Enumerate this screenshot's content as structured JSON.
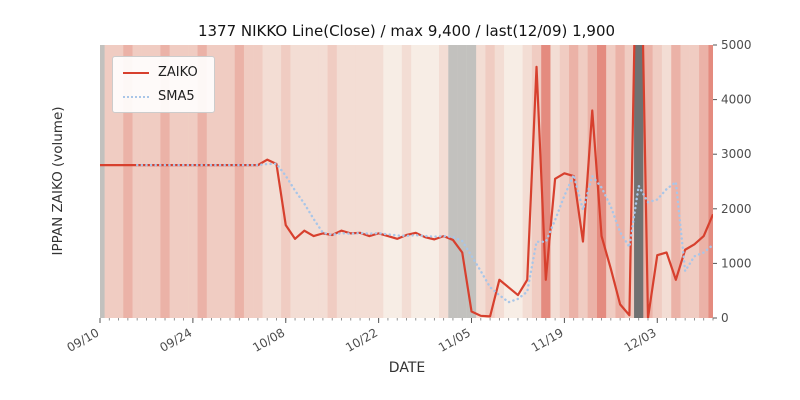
{
  "chart": {
    "title": "1377 NIKKO Line(Close) / max 9,400 / last(12/09) 1,900",
    "xlabel": "DATE",
    "ylabel": "IPPAN ZAIKO (volume)",
    "legend": [
      {
        "label": "ZAIKO"
      },
      {
        "label": "SMA5"
      }
    ]
  },
  "chart_data": {
    "type": "line",
    "title": "1377 NIKKO Line(Close) / max 9,400 / last(12/09) 1,900",
    "xlabel": "DATE",
    "ylabel": "IPPAN ZAIKO (volume)",
    "ylim": [
      0,
      5000
    ],
    "y_ticks": [
      0,
      1000,
      2000,
      3000,
      4000,
      5000
    ],
    "x_tick_labels": [
      "09/10",
      "09/24",
      "10/08",
      "10/22",
      "11/05",
      "11/19",
      "12/03"
    ],
    "x_tick_indices": [
      0,
      10,
      20,
      30,
      40,
      50,
      60
    ],
    "legend_position": "upper-left",
    "grid": false,
    "max_annotated": 9400,
    "last_annotated": {
      "date": "12/09",
      "value": 1900
    },
    "series": [
      {
        "name": "ZAIKO",
        "color": "#d7402e",
        "style": "solid",
        "values": [
          2800,
          2800,
          2800,
          2800,
          2800,
          2800,
          2800,
          2800,
          2800,
          2800,
          2800,
          2800,
          2800,
          2800,
          2800,
          2800,
          2800,
          2800,
          2900,
          2820,
          1700,
          1450,
          1600,
          1500,
          1550,
          1520,
          1600,
          1550,
          1560,
          1500,
          1550,
          1500,
          1450,
          1520,
          1560,
          1480,
          1440,
          1500,
          1430,
          1200,
          120,
          40,
          30,
          700,
          560,
          420,
          700,
          4600,
          700,
          2550,
          2650,
          2600,
          1400,
          3800,
          1500,
          900,
          250,
          50,
          9400,
          0,
          1150,
          1200,
          700,
          1250,
          1350,
          1500,
          1900
        ]
      },
      {
        "name": "SMA5",
        "color": "#a9c6e8",
        "style": "dotted",
        "derived": "5-period moving average of ZAIKO"
      }
    ],
    "bands": [
      "g",
      2,
      2,
      3,
      2,
      2,
      2,
      3,
      2,
      2,
      2,
      3,
      2,
      2,
      2,
      3,
      2,
      2,
      1,
      1,
      2,
      1,
      1,
      1,
      1,
      2,
      1,
      1,
      1,
      1,
      1,
      0,
      0,
      1,
      0,
      0,
      0,
      1,
      "g",
      "g",
      "g",
      1,
      2,
      1,
      0,
      0,
      1,
      2,
      4,
      1,
      2,
      3,
      2,
      3,
      4,
      2,
      3,
      2,
      "G",
      3,
      2,
      1,
      3,
      2,
      2,
      3,
      4
    ],
    "band_colors": {
      "0": "rgba(214,69,51,0.05)",
      "1": "rgba(214,69,51,0.14)",
      "2": "rgba(214,69,51,0.24)",
      "3": "rgba(214,69,51,0.38)",
      "4": "rgba(214,69,51,0.60)",
      "g": "rgba(150,150,150,0.55)",
      "G": "rgba(105,105,105,0.95)"
    },
    "plot_background": "#f9f6ef"
  }
}
